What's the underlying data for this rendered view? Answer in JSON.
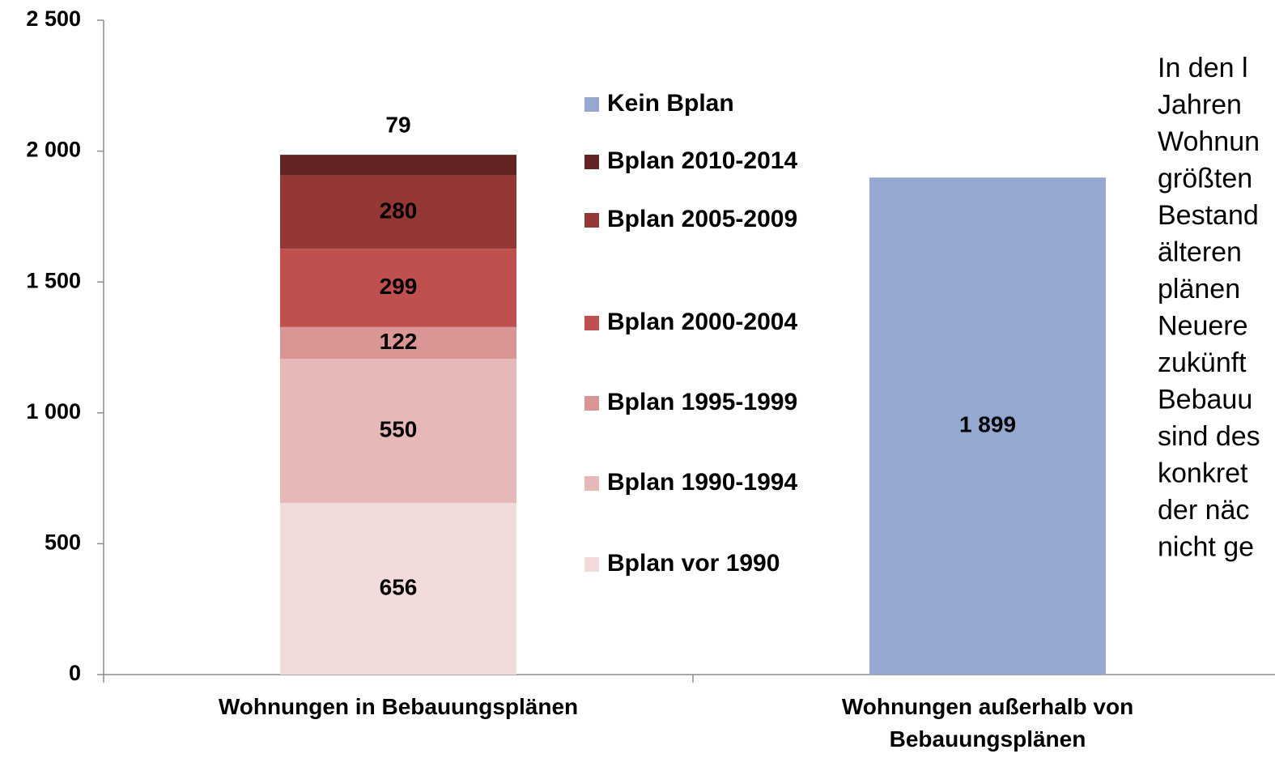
{
  "chart_data": {
    "type": "stacked_bar",
    "categories": [
      "Wohnungen in Bebauungsplänen",
      "Wohnungen außerhalb von Bebauungsplänen"
    ],
    "series": [
      {
        "name": "Bplan vor 1990",
        "color": "#f2dcdb",
        "values": [
          656,
          null
        ]
      },
      {
        "name": "Bplan 1990-1994",
        "color": "#e6b9b8",
        "values": [
          550,
          null
        ]
      },
      {
        "name": "Bplan 1995-1999",
        "color": "#d99694",
        "values": [
          122,
          null
        ]
      },
      {
        "name": "Bplan 2000-2004",
        "color": "#c0504d",
        "values": [
          299,
          null
        ]
      },
      {
        "name": "Bplan 2005-2009",
        "color": "#953735",
        "values": [
          280,
          null
        ]
      },
      {
        "name": "Bplan 2010-2014",
        "color": "#632523",
        "values": [
          79,
          null
        ]
      },
      {
        "name": "Kein Bplan",
        "color": "#95a9d0",
        "values": [
          null,
          1899
        ],
        "value_labels": [
          null,
          "1 899"
        ]
      }
    ],
    "ylim": [
      0,
      2500
    ],
    "yticks": [
      0,
      500,
      {
        "value": 1000,
        "label": "1 000"
      },
      {
        "value": 1500,
        "label": "1 500"
      },
      {
        "value": 2000,
        "label": "2 000"
      },
      {
        "value": 2500,
        "label": "2 500"
      }
    ],
    "legend": "right",
    "annotation_lines": [
      "In den l",
      "Jahren",
      "Wohnun",
      "größten",
      "Bestand",
      "älteren",
      "plänen",
      "Neuere",
      "zukünft",
      "Bebauu",
      "sind des",
      "konkret",
      "der näc",
      "nicht ge"
    ]
  }
}
